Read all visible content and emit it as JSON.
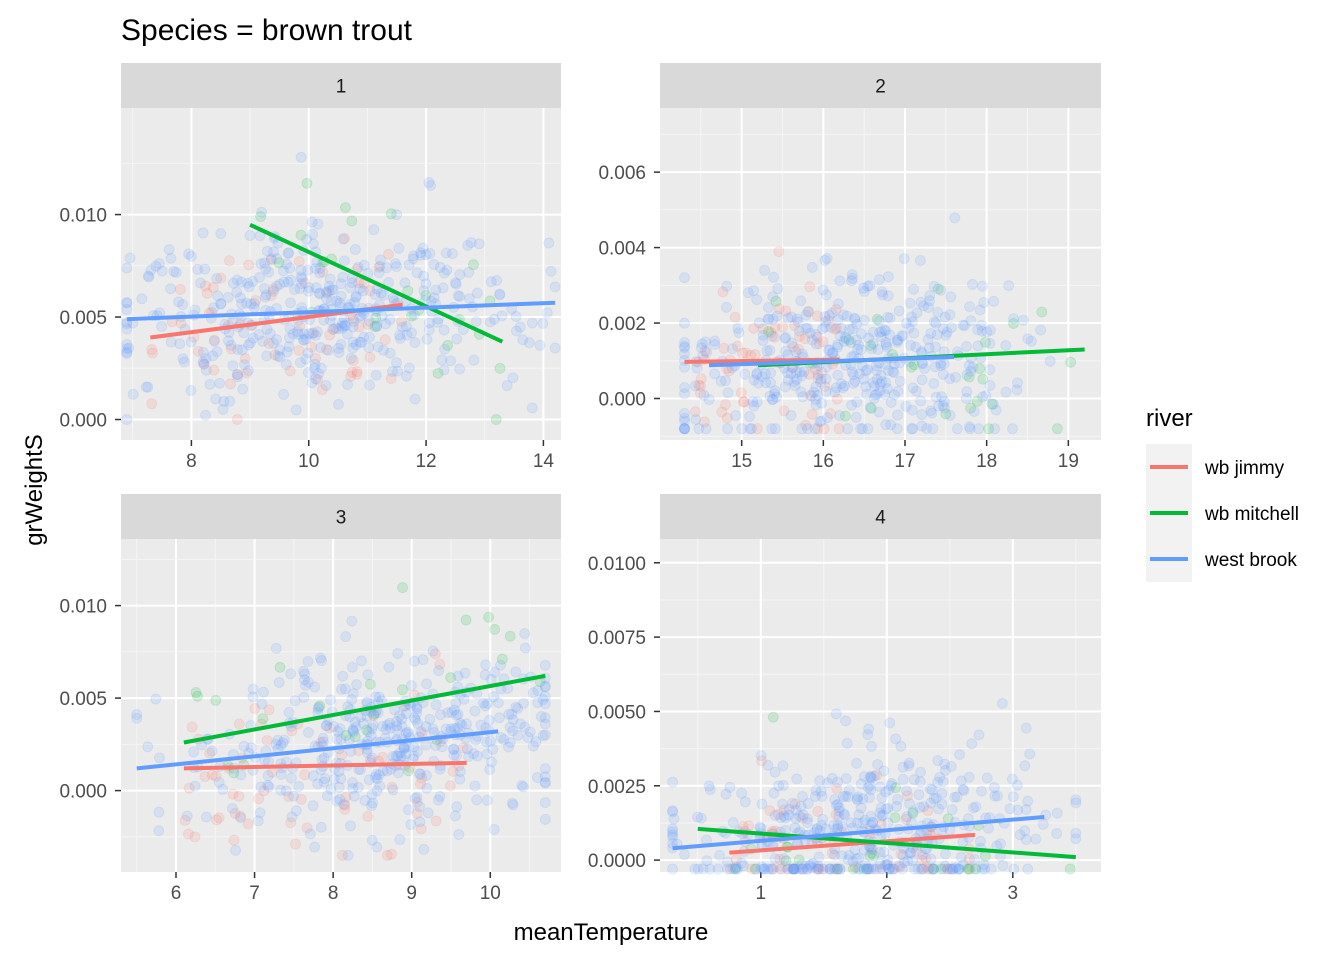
{
  "chart_data": {
    "type": "scatter",
    "title": "Species = brown trout",
    "xlabel": "meanTemperature",
    "ylabel": "grWeightS",
    "legend": {
      "title": "river",
      "placement": "right",
      "entries": [
        {
          "name": "wb jimmy",
          "color": "#F8766D"
        },
        {
          "name": "wb mitchell",
          "color": "#00BA38"
        },
        {
          "name": "west brook",
          "color": "#619CFF"
        }
      ]
    },
    "grid": true,
    "point_alpha": 0.15,
    "panels": [
      {
        "strip": "1",
        "xlim": [
          6.8,
          14.3
        ],
        "ylim": [
          -0.001,
          0.0152
        ],
        "xticks": [
          8,
          10,
          12,
          14
        ],
        "xtick_labels": [
          "8",
          "10",
          "12",
          "14"
        ],
        "yticks": [
          0.0,
          0.005,
          0.01
        ],
        "ytick_labels": [
          "0.000",
          "0.005",
          "0.010"
        ],
        "cloud": {
          "x_range": [
            6.9,
            14.2
          ],
          "y_range": [
            0.0,
            0.0142
          ],
          "x_center": 10.2,
          "y_center": 0.0045
        },
        "fits": [
          {
            "series": "wb jimmy",
            "x": [
              7.3,
              11.6
            ],
            "y": [
              0.004,
              0.0056
            ]
          },
          {
            "series": "wb mitchell",
            "x": [
              9.0,
              13.3
            ],
            "y": [
              0.0095,
              0.0038
            ]
          },
          {
            "series": "west brook",
            "x": [
              6.9,
              14.2
            ],
            "y": [
              0.0049,
              0.0057
            ]
          }
        ]
      },
      {
        "strip": "2",
        "xlim": [
          14.0,
          19.4
        ],
        "ylim": [
          -0.0011,
          0.0077
        ],
        "xticks": [
          15,
          16,
          17,
          18,
          19
        ],
        "xtick_labels": [
          "15",
          "16",
          "17",
          "18",
          "19"
        ],
        "yticks": [
          0.0,
          0.002,
          0.004,
          0.006
        ],
        "ytick_labels": [
          "0.000",
          "0.002",
          "0.004",
          "0.006"
        ],
        "cloud": {
          "x_range": [
            14.3,
            19.2
          ],
          "y_range": [
            -0.0008,
            0.0073
          ],
          "x_center": 16.3,
          "y_center": 0.0011
        },
        "fits": [
          {
            "series": "wb jimmy",
            "x": [
              14.3,
              16.2
            ],
            "y": [
              0.00097,
              0.00103
            ]
          },
          {
            "series": "wb mitchell",
            "x": [
              15.2,
              19.2
            ],
            "y": [
              0.00088,
              0.0013
            ]
          },
          {
            "series": "west brook",
            "x": [
              14.6,
              17.6
            ],
            "y": [
              0.00088,
              0.0011
            ]
          }
        ]
      },
      {
        "strip": "3",
        "xlim": [
          5.3,
          10.9
        ],
        "ylim": [
          -0.0044,
          0.0136
        ],
        "xticks": [
          6,
          7,
          8,
          9,
          10
        ],
        "xtick_labels": [
          "6",
          "7",
          "8",
          "9",
          "10"
        ],
        "yticks": [
          0.0,
          0.005,
          0.01
        ],
        "ytick_labels": [
          "0.000",
          "0.005",
          "0.010"
        ],
        "cloud": {
          "x_range": [
            5.5,
            10.7
          ],
          "y_range": [
            -0.0035,
            0.0128
          ],
          "x_center": 8.7,
          "y_center": 0.0025
        },
        "fits": [
          {
            "series": "wb jimmy",
            "x": [
              6.1,
              9.7
            ],
            "y": [
              0.0012,
              0.0015
            ]
          },
          {
            "series": "wb mitchell",
            "x": [
              6.1,
              10.7
            ],
            "y": [
              0.0026,
              0.0062
            ]
          },
          {
            "series": "west brook",
            "x": [
              5.5,
              10.1
            ],
            "y": [
              0.0012,
              0.0032
            ]
          }
        ]
      },
      {
        "strip": "4",
        "xlim": [
          0.2,
          3.7
        ],
        "ylim": [
          -0.0004,
          0.0108
        ],
        "xticks": [
          1,
          2,
          3
        ],
        "xtick_labels": [
          "1",
          "2",
          "3"
        ],
        "yticks": [
          0.0,
          0.0025,
          0.005,
          0.0075,
          0.01
        ],
        "ytick_labels": [
          "0.0000",
          "0.0025",
          "0.0050",
          "0.0075",
          "0.0100"
        ],
        "cloud": {
          "x_range": [
            0.3,
            3.5
          ],
          "y_range": [
            -0.0003,
            0.01
          ],
          "x_center": 1.8,
          "y_center": 0.0008
        },
        "fits": [
          {
            "series": "wb jimmy",
            "x": [
              0.75,
              2.7
            ],
            "y": [
              0.00025,
              0.00085
            ]
          },
          {
            "series": "wb mitchell",
            "x": [
              0.5,
              3.5
            ],
            "y": [
              0.00105,
              0.0001
            ]
          },
          {
            "series": "west brook",
            "x": [
              0.3,
              3.25
            ],
            "y": [
              0.0004,
              0.00145
            ]
          }
        ]
      }
    ]
  }
}
